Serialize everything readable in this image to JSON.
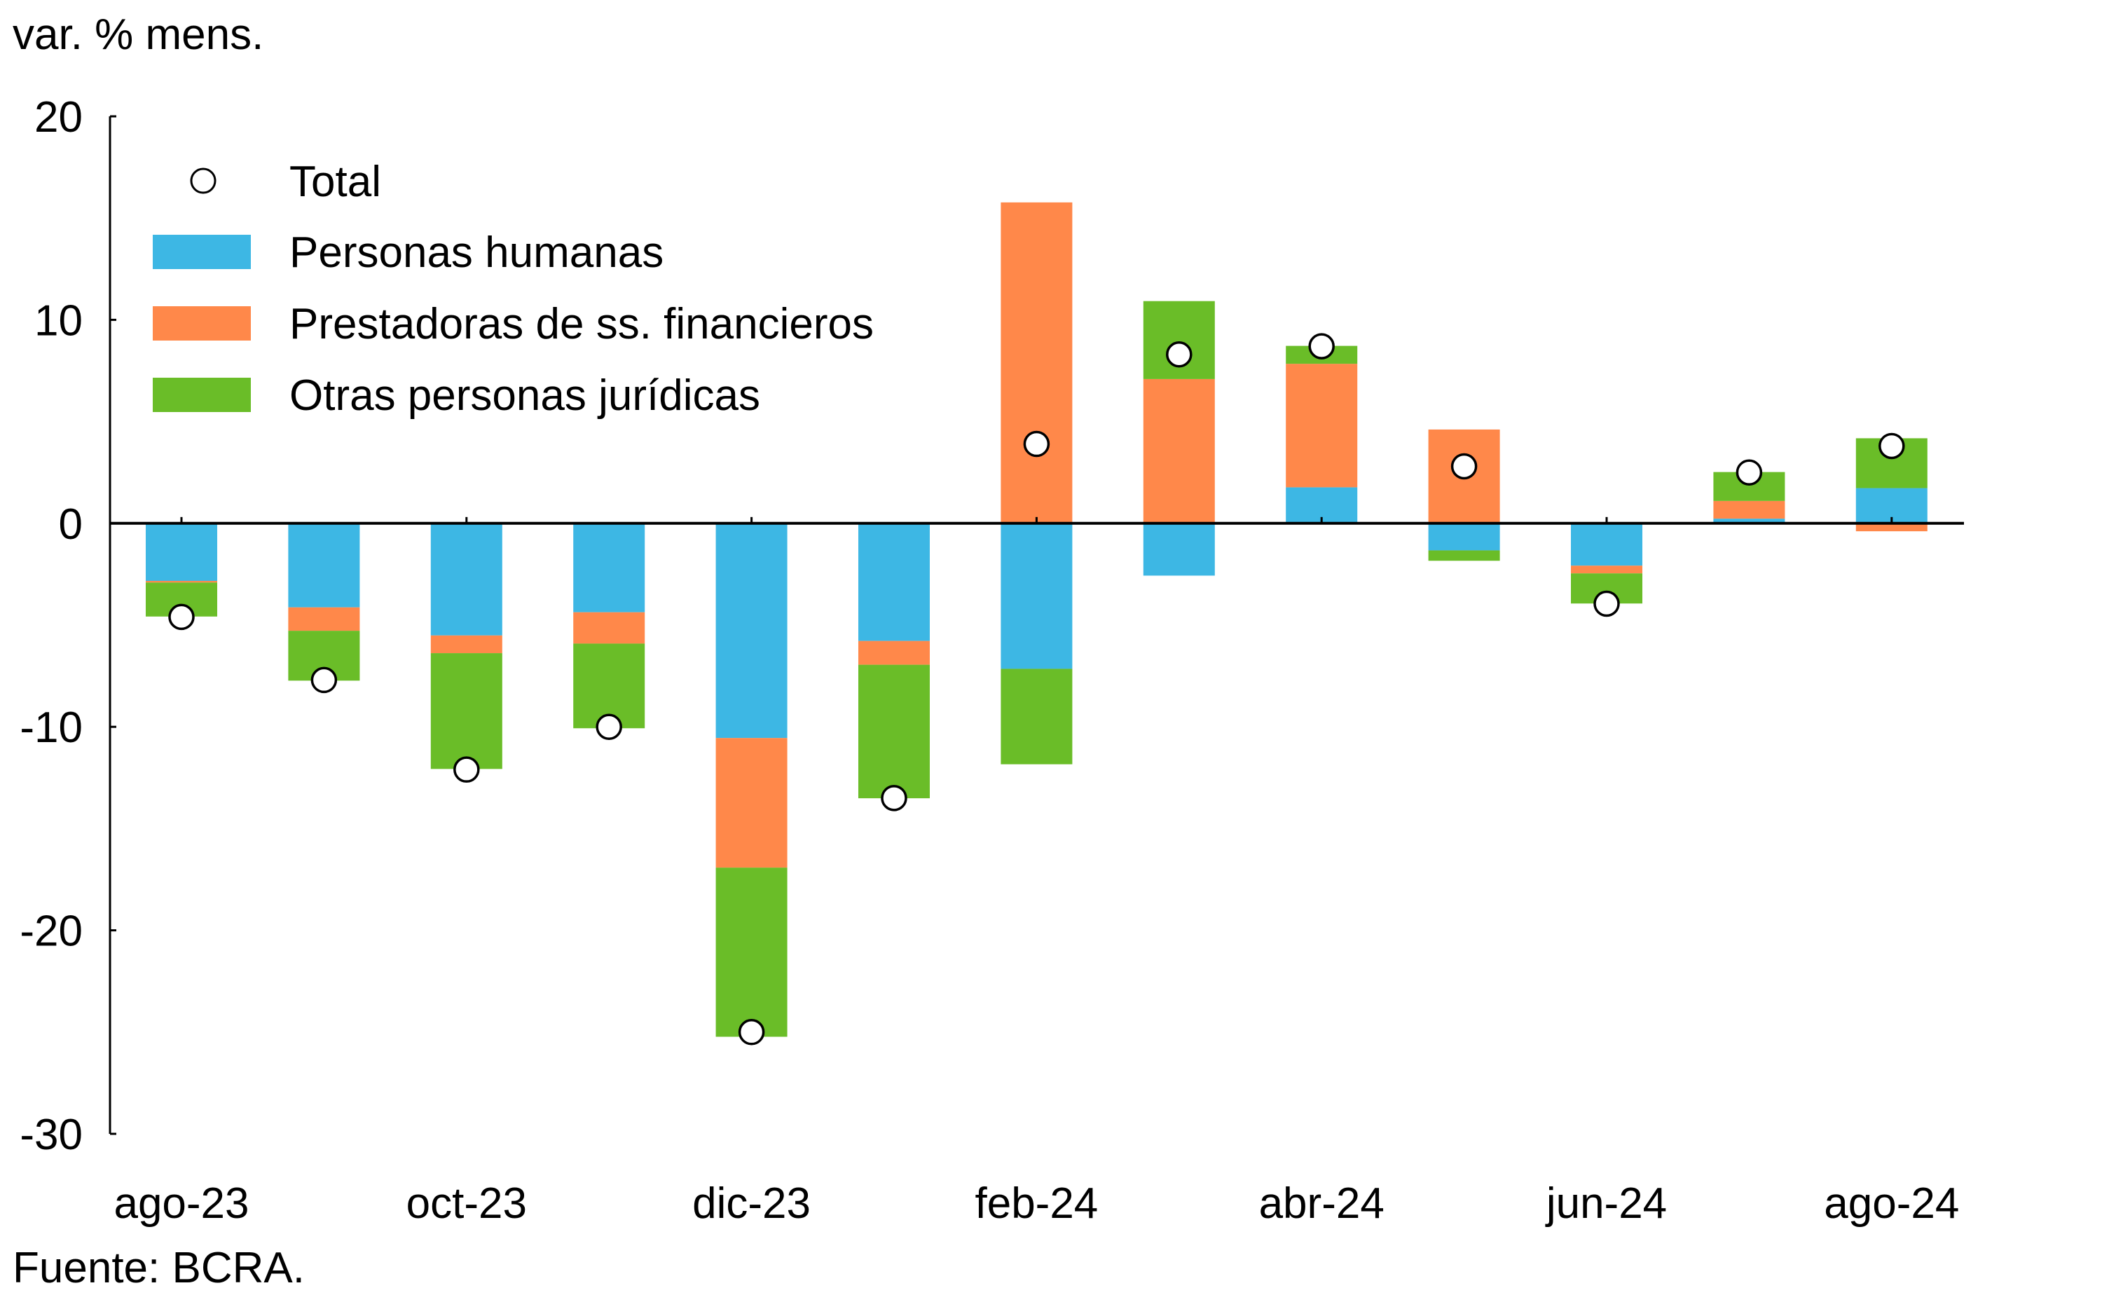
{
  "chart_data": {
    "type": "bar",
    "stacked": true,
    "title": "",
    "ylabel": "var. % mens.",
    "xlabel": "",
    "source": "Fuente: BCRA.",
    "ylim": [
      -30,
      20
    ],
    "yticks": [
      20,
      10,
      0,
      -10,
      -20,
      -30
    ],
    "categories": [
      "ago-23",
      "sep-23",
      "oct-23",
      "nov-23",
      "dic-23",
      "ene-24",
      "feb-24",
      "mar-24",
      "abr-24",
      "may-24",
      "jun-24",
      "jul-24",
      "ago-24"
    ],
    "xtick_labels": [
      {
        "index": 0,
        "label": "ago-23"
      },
      {
        "index": 2,
        "label": "oct-23"
      },
      {
        "index": 4,
        "label": "dic-23"
      },
      {
        "index": 6,
        "label": "feb-24"
      },
      {
        "index": 8,
        "label": "abr-24"
      },
      {
        "index": 10,
        "label": "jun-24"
      },
      {
        "index": 12,
        "label": "ago-24"
      }
    ],
    "series": [
      {
        "name": "Personas humanas",
        "color": "#3db7e4",
        "values": [
          -2.83,
          -4.13,
          -5.51,
          -4.37,
          -10.55,
          -5.78,
          -7.15,
          -2.57,
          1.77,
          -1.33,
          -2.08,
          0.23,
          1.73
        ]
      },
      {
        "name": "Prestadoras de ss. financieros",
        "color": "#ff884a",
        "values": [
          -0.08,
          -1.15,
          -0.87,
          -1.54,
          -6.37,
          -1.17,
          15.77,
          7.09,
          6.07,
          4.61,
          -0.38,
          0.87,
          -0.39
        ]
      },
      {
        "name": "Otras personas jurídicas",
        "color": "#6abd28",
        "values": [
          -1.67,
          -2.45,
          -5.69,
          -4.16,
          -8.31,
          -6.56,
          -4.69,
          3.83,
          0.88,
          -0.51,
          -1.48,
          1.42,
          2.45
        ]
      }
    ],
    "total": {
      "name": "Total",
      "marker": "circle-open",
      "values": [
        -4.6,
        -7.7,
        -12.1,
        -10.0,
        -25.0,
        -13.5,
        3.9,
        8.3,
        8.7,
        2.8,
        -3.95,
        2.5,
        3.8
      ]
    },
    "legend": {
      "placement": "top-left",
      "entries": [
        {
          "label": "Total",
          "kind": "marker"
        },
        {
          "label": "Personas humanas",
          "kind": "swatch",
          "color": "#3db7e4"
        },
        {
          "label": "Prestadoras de ss. financieros",
          "kind": "swatch",
          "color": "#ff884a"
        },
        {
          "label": "Otras personas jurídicas",
          "kind": "swatch",
          "color": "#6abd28"
        }
      ]
    },
    "grid": false
  }
}
